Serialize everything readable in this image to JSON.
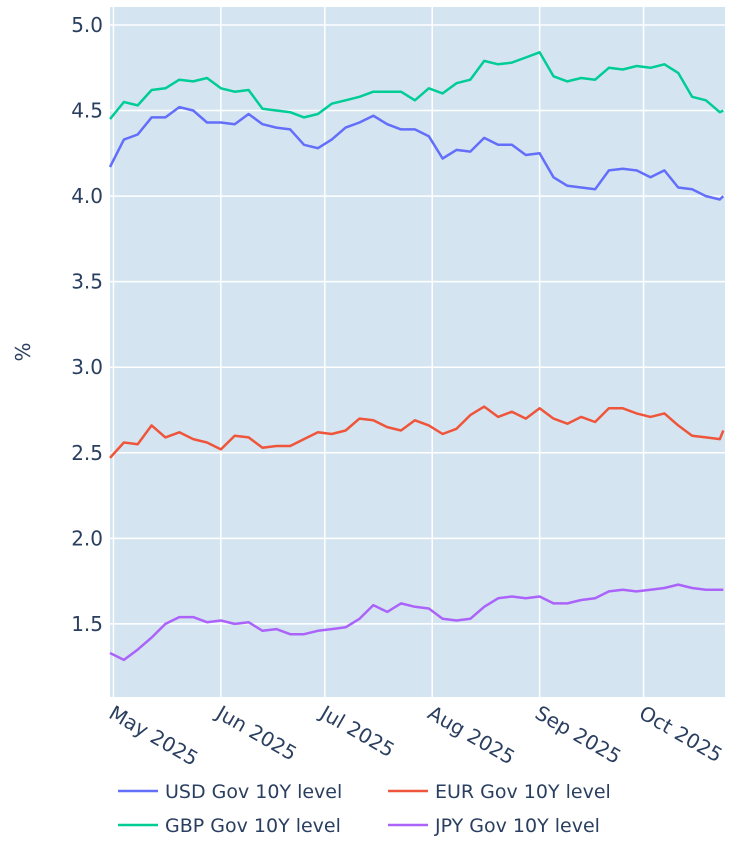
{
  "chart_data": {
    "type": "line",
    "title": "",
    "xlabel": "",
    "ylabel": "%",
    "xlim": [
      "2025-04-30",
      "2025-10-24"
    ],
    "ylim": [
      1.073,
      5.105
    ],
    "grid": true,
    "legend_position": "bottom",
    "yticks": [
      1.5,
      2.0,
      2.5,
      3.0,
      3.5,
      4.0,
      4.5,
      5.0
    ],
    "ytick_labels": [
      "1.5",
      "2.0",
      "2.5",
      "3.0",
      "3.5",
      "4.0",
      "4.5",
      "5.0"
    ],
    "xticks": [
      "2025-05-01",
      "2025-06-01",
      "2025-07-01",
      "2025-08-01",
      "2025-09-01",
      "2025-10-01"
    ],
    "xtick_labels": [
      "May 2025",
      "Jun 2025",
      "Jul 2025",
      "Aug 2025",
      "Sep 2025",
      "Oct 2025"
    ],
    "x": [
      "2025-04-30",
      "2025-05-04",
      "2025-05-08",
      "2025-05-12",
      "2025-05-16",
      "2025-05-20",
      "2025-05-24",
      "2025-05-28",
      "2025-06-01",
      "2025-06-05",
      "2025-06-09",
      "2025-06-13",
      "2025-06-17",
      "2025-06-21",
      "2025-06-25",
      "2025-06-29",
      "2025-07-03",
      "2025-07-07",
      "2025-07-11",
      "2025-07-15",
      "2025-07-19",
      "2025-07-23",
      "2025-07-27",
      "2025-07-31",
      "2025-08-04",
      "2025-08-08",
      "2025-08-12",
      "2025-08-16",
      "2025-08-20",
      "2025-08-24",
      "2025-08-28",
      "2025-09-01",
      "2025-09-05",
      "2025-09-09",
      "2025-09-13",
      "2025-09-17",
      "2025-09-21",
      "2025-09-25",
      "2025-09-29",
      "2025-10-03",
      "2025-10-07",
      "2025-10-11",
      "2025-10-15",
      "2025-10-19",
      "2025-10-23",
      "2025-10-24"
    ],
    "series": [
      {
        "name": "USD Gov 10Y level",
        "color": "#636efa",
        "values": [
          4.17,
          4.33,
          4.36,
          4.46,
          4.46,
          4.52,
          4.5,
          4.43,
          4.43,
          4.42,
          4.48,
          4.42,
          4.4,
          4.39,
          4.3,
          4.28,
          4.33,
          4.4,
          4.43,
          4.47,
          4.42,
          4.39,
          4.39,
          4.35,
          4.22,
          4.27,
          4.26,
          4.34,
          4.3,
          4.3,
          4.24,
          4.25,
          4.11,
          4.06,
          4.05,
          4.04,
          4.15,
          4.16,
          4.15,
          4.11,
          4.15,
          4.05,
          4.04,
          4.0,
          3.98,
          4.0
        ]
      },
      {
        "name": "EUR Gov 10Y level",
        "color": "#ef553b",
        "values": [
          2.47,
          2.56,
          2.55,
          2.66,
          2.59,
          2.62,
          2.58,
          2.56,
          2.52,
          2.6,
          2.59,
          2.53,
          2.54,
          2.54,
          2.58,
          2.62,
          2.61,
          2.63,
          2.7,
          2.69,
          2.65,
          2.63,
          2.69,
          2.66,
          2.61,
          2.64,
          2.72,
          2.77,
          2.71,
          2.74,
          2.7,
          2.76,
          2.7,
          2.67,
          2.71,
          2.68,
          2.76,
          2.76,
          2.73,
          2.71,
          2.73,
          2.66,
          2.6,
          2.59,
          2.58,
          2.63
        ]
      },
      {
        "name": "GBP Gov 10Y level",
        "color": "#00cc96",
        "values": [
          4.45,
          4.55,
          4.53,
          4.62,
          4.63,
          4.68,
          4.67,
          4.69,
          4.63,
          4.61,
          4.62,
          4.51,
          4.5,
          4.49,
          4.46,
          4.48,
          4.54,
          4.56,
          4.58,
          4.61,
          4.61,
          4.61,
          4.56,
          4.63,
          4.6,
          4.66,
          4.68,
          4.79,
          4.77,
          4.78,
          4.81,
          4.84,
          4.7,
          4.67,
          4.69,
          4.68,
          4.75,
          4.74,
          4.76,
          4.75,
          4.77,
          4.72,
          4.58,
          4.56,
          4.49,
          4.5
        ]
      },
      {
        "name": "JPY Gov 10Y level",
        "color": "#ab63fa",
        "values": [
          1.33,
          1.29,
          1.35,
          1.42,
          1.5,
          1.54,
          1.54,
          1.51,
          1.52,
          1.5,
          1.51,
          1.46,
          1.47,
          1.44,
          1.44,
          1.46,
          1.47,
          1.48,
          1.53,
          1.61,
          1.57,
          1.62,
          1.6,
          1.59,
          1.53,
          1.52,
          1.53,
          1.6,
          1.65,
          1.66,
          1.65,
          1.66,
          1.62,
          1.62,
          1.64,
          1.65,
          1.69,
          1.7,
          1.69,
          1.7,
          1.71,
          1.73,
          1.71,
          1.7,
          1.7,
          1.7
        ]
      }
    ]
  }
}
